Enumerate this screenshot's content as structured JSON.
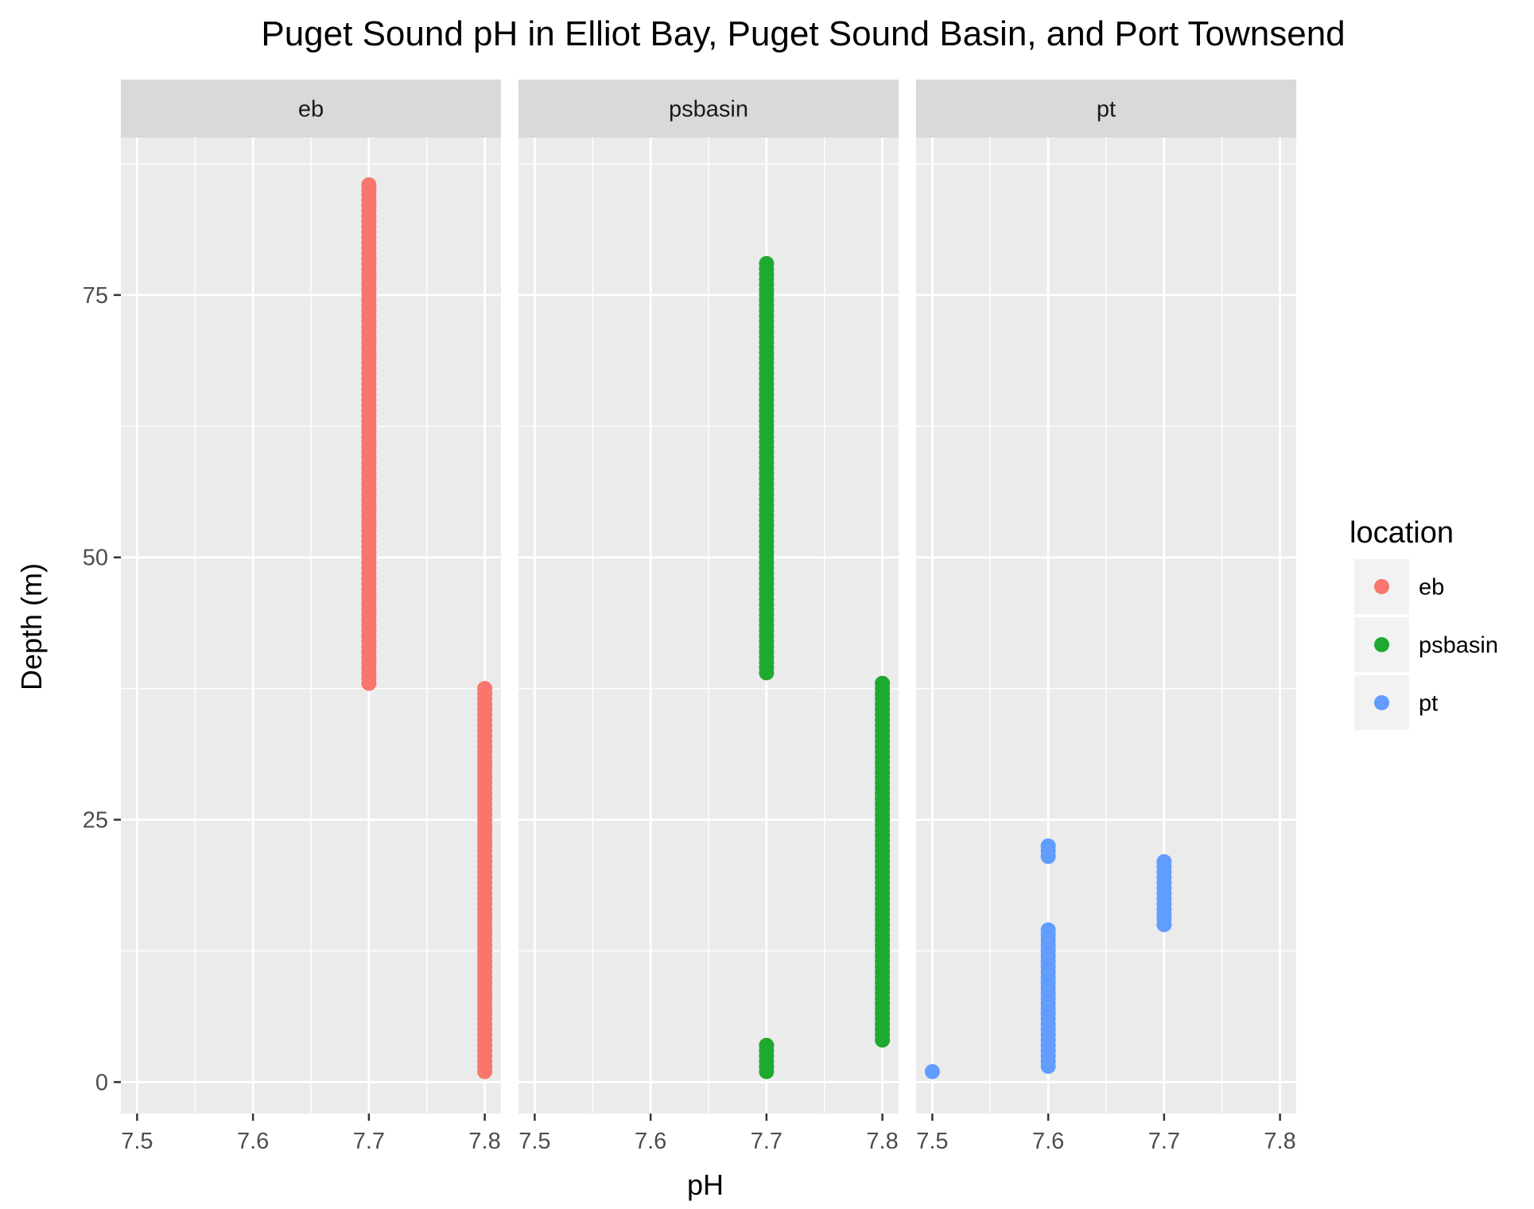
{
  "chart_data": {
    "type": "scatter",
    "title": "Puget Sound pH in Elliot Bay, Puget Sound Basin, and Port Townsend",
    "xlabel": "pH",
    "ylabel": "Depth (m)",
    "xlim": [
      7.486,
      7.814
    ],
    "ylim": [
      -3.0,
      90.0
    ],
    "x_ticks": [
      "7.5",
      "7.6",
      "7.7",
      "7.8"
    ],
    "y_ticks": [
      "0",
      "25",
      "50",
      "75"
    ],
    "grid": true,
    "legend": {
      "title": "location",
      "position": "right",
      "entries": [
        "eb",
        "psbasin",
        "pt"
      ]
    },
    "facets": [
      "eb",
      "psbasin",
      "pt"
    ],
    "series": [
      {
        "name": "eb",
        "color": "#f8766d",
        "facet": "eb",
        "segments": [
          {
            "x": 7.7,
            "y_from": 38,
            "y_to": 85.5
          },
          {
            "x": 7.8,
            "y_from": 1,
            "y_to": 37.5
          }
        ]
      },
      {
        "name": "psbasin",
        "color": "#1faa2f",
        "facet": "psbasin",
        "segments": [
          {
            "x": 7.7,
            "y_from": 39,
            "y_to": 78
          },
          {
            "x": 7.7,
            "y_from": 1,
            "y_to": 3.5
          },
          {
            "x": 7.8,
            "y_from": 4,
            "y_to": 38
          }
        ]
      },
      {
        "name": "pt",
        "color": "#619cff",
        "facet": "pt",
        "segments": [
          {
            "x": 7.5,
            "y_from": 1,
            "y_to": 1
          },
          {
            "x": 7.6,
            "y_from": 1.5,
            "y_to": 14.5
          },
          {
            "x": 7.6,
            "y_from": 21.5,
            "y_to": 22.5
          },
          {
            "x": 7.7,
            "y_from": 15,
            "y_to": 21
          }
        ]
      }
    ]
  }
}
